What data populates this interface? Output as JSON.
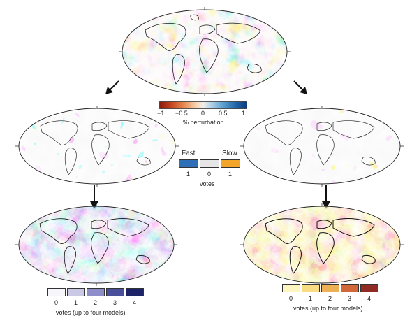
{
  "perturbation_colorbar": {
    "ticks": [
      "−1",
      "−0.5",
      "0",
      "0.5",
      "1"
    ],
    "label": "% perturbation",
    "colors": [
      "#8b1a0e",
      "#c4421f",
      "#e98a52",
      "#f6d3b3",
      "#f4f0ea",
      "#b9d6ea",
      "#5fa2cf",
      "#2166ac",
      "#0d3a78"
    ]
  },
  "vote_legend": {
    "fast_label": "Fast",
    "slow_label": "Slow",
    "fast_value": "1",
    "neutral_value": "0",
    "slow_value": "1",
    "label": "votes",
    "fast_color": "#2f6fb8",
    "neutral_color": "#e6e6e6",
    "slow_color": "#f3a52a"
  },
  "fast_count_legend": {
    "ticks": [
      "0",
      "1",
      "2",
      "3",
      "4"
    ],
    "label": "votes (up to four models)",
    "colors": [
      "#f7f7fb",
      "#c9c9e6",
      "#8d8ec9",
      "#4a4f9c",
      "#1d2368"
    ]
  },
  "slow_count_legend": {
    "ticks": [
      "0",
      "1",
      "2",
      "3",
      "4"
    ],
    "label": "votes (up to four models)",
    "colors": [
      "#fdf6c0",
      "#f9dd85",
      "#eeb055",
      "#d2673a",
      "#8f2a25"
    ]
  }
}
